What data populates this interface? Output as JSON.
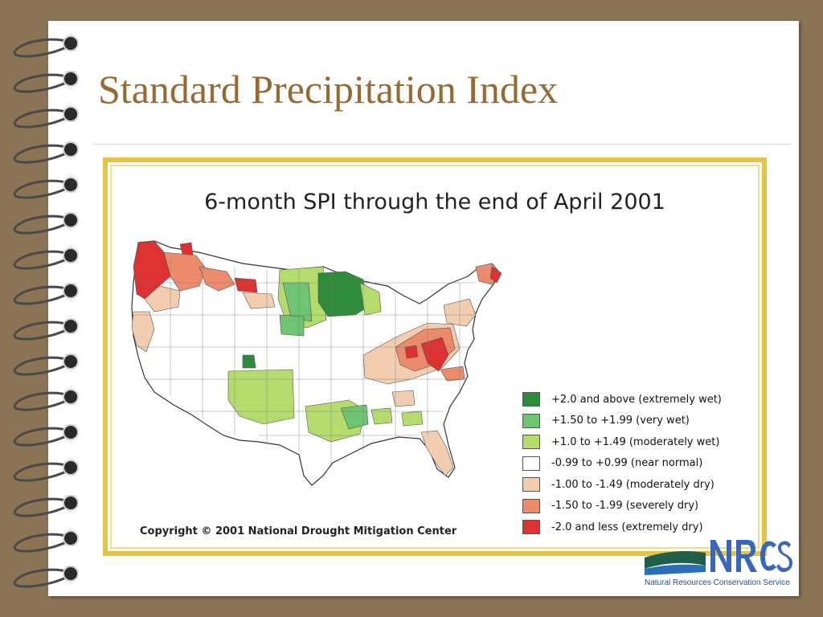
{
  "slide": {
    "title": "Standard Precipitation Index"
  },
  "map": {
    "title": "6-month SPI through the end of April 2001",
    "copyright": "Copyright © 2001 National Drought Mitigation Center",
    "legend": [
      {
        "label": "+2.0 and above (extremely wet)",
        "color": "#2e8b3c"
      },
      {
        "label": "+1.50 to +1.99 (very wet)",
        "color": "#6fc474"
      },
      {
        "label": "+1.0 to +1.49 (moderately wet)",
        "color": "#b4dc6c"
      },
      {
        "label": "-0.99 to +0.99 (near normal)",
        "color": "#ffffff"
      },
      {
        "label": "-1.00 to -1.49 (moderately dry)",
        "color": "#f2cdb0"
      },
      {
        "label": "-1.50 to -1.99 (severely dry)",
        "color": "#ec8a6c"
      },
      {
        "label": "-2.0 and less (extremely dry)",
        "color": "#dd3232"
      }
    ]
  },
  "logo": {
    "caption": "Natural Resources Conservation Service"
  }
}
